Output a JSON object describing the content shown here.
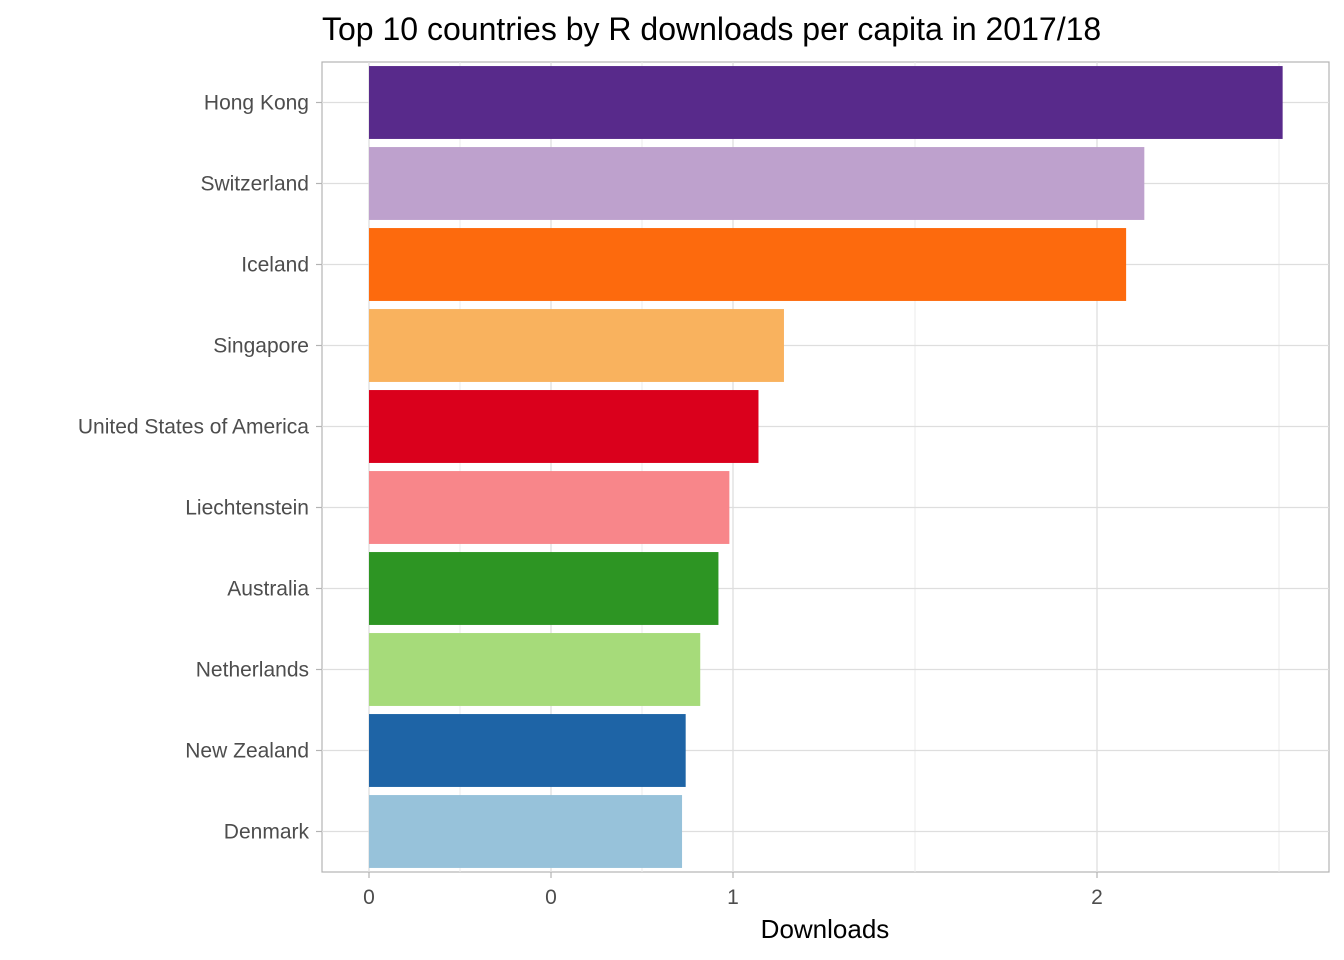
{
  "chart_data": {
    "type": "bar",
    "orientation": "horizontal",
    "title": "Top 10 countries by R downloads per capita in 2017/18",
    "xlabel": "Downloads",
    "ylabel": "",
    "categories": [
      "Hong Kong",
      "Switzerland",
      "Iceland",
      "Singapore",
      "United States of America",
      "Liechtenstein",
      "Australia",
      "Netherlands",
      "New Zealand",
      "Denmark"
    ],
    "values": [
      2.51,
      2.13,
      2.08,
      1.14,
      1.07,
      0.99,
      0.96,
      0.91,
      0.87,
      0.86
    ],
    "colors": [
      "#582A8B",
      "#BEA1CD",
      "#FD6A0D",
      "#F9B25E",
      "#DA001C",
      "#F8868A",
      "#2D9523",
      "#A6DB7A",
      "#1E64A6",
      "#97C2DA"
    ],
    "x_ticks": [
      {
        "label": "0",
        "value": 0
      },
      {
        "label": "0",
        "value": 0.5
      },
      {
        "label": "1",
        "value": 1
      },
      {
        "label": "2",
        "value": 2
      }
    ],
    "xlim": [
      -0.17,
      2.68
    ],
    "grid": true,
    "legend": "none"
  }
}
